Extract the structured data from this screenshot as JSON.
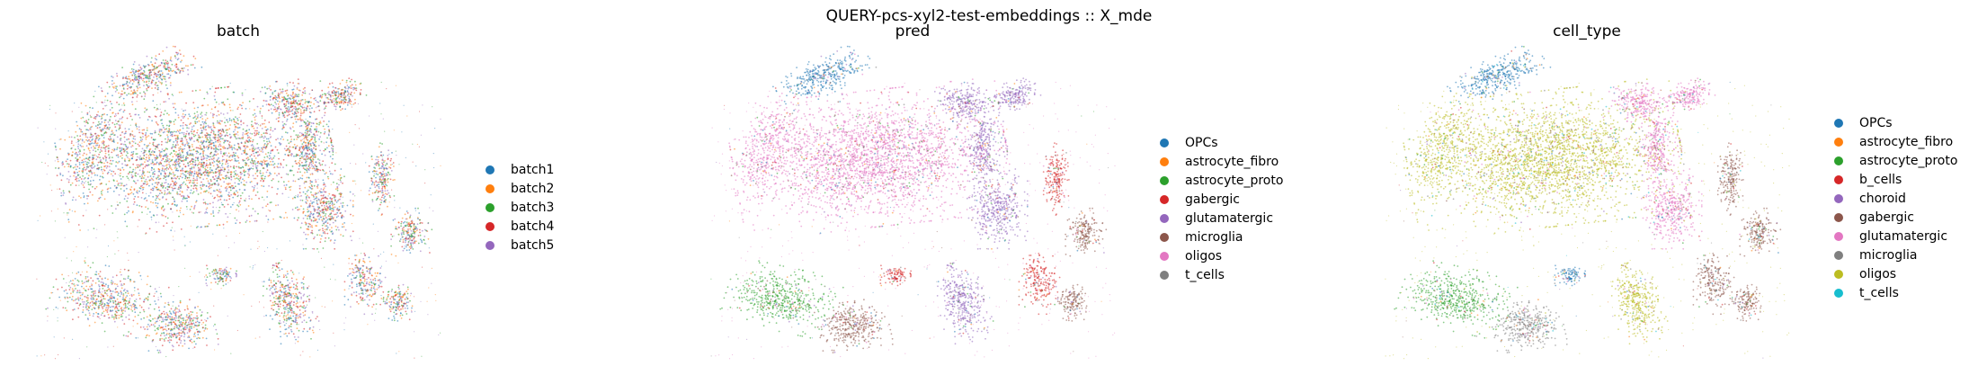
{
  "figure_title": "QUERY-pcs-xyl2-test-embeddings :: X_mde",
  "chart_data": [
    {
      "type": "scatter",
      "title": "batch",
      "xlabel": "",
      "ylabel": "",
      "axes_visible": false,
      "grid": false,
      "legend_placement": "right",
      "series": [
        {
          "name": "batch1",
          "color": "#1f77b4"
        },
        {
          "name": "batch2",
          "color": "#ff7f0e"
        },
        {
          "name": "batch3",
          "color": "#2ca02c"
        },
        {
          "name": "batch4",
          "color": "#d62728"
        },
        {
          "name": "batch5",
          "color": "#9467bd"
        }
      ]
    },
    {
      "type": "scatter",
      "title": "pred",
      "xlabel": "",
      "ylabel": "",
      "axes_visible": false,
      "grid": false,
      "legend_placement": "right",
      "series": [
        {
          "name": "OPCs",
          "color": "#1f77b4"
        },
        {
          "name": "astrocyte_fibro",
          "color": "#ff7f0e"
        },
        {
          "name": "astrocyte_proto",
          "color": "#2ca02c"
        },
        {
          "name": "gabergic",
          "color": "#d62728"
        },
        {
          "name": "glutamatergic",
          "color": "#9467bd"
        },
        {
          "name": "microglia",
          "color": "#8c564b"
        },
        {
          "name": "oligos",
          "color": "#e377c2"
        },
        {
          "name": "t_cells",
          "color": "#7f7f7f"
        }
      ]
    },
    {
      "type": "scatter",
      "title": "cell_type",
      "xlabel": "",
      "ylabel": "",
      "axes_visible": false,
      "grid": false,
      "legend_placement": "right",
      "series": [
        {
          "name": "OPCs",
          "color": "#1f77b4"
        },
        {
          "name": "astrocyte_fibro",
          "color": "#ff7f0e"
        },
        {
          "name": "astrocyte_proto",
          "color": "#2ca02c"
        },
        {
          "name": "b_cells",
          "color": "#d62728"
        },
        {
          "name": "choroid",
          "color": "#9467bd"
        },
        {
          "name": "gabergic",
          "color": "#8c564b"
        },
        {
          "name": "glutamatergic",
          "color": "#e377c2"
        },
        {
          "name": "microglia",
          "color": "#7f7f7f"
        },
        {
          "name": "oligos",
          "color": "#bcbd22"
        },
        {
          "name": "t_cells",
          "color": "#17becf"
        }
      ]
    }
  ]
}
